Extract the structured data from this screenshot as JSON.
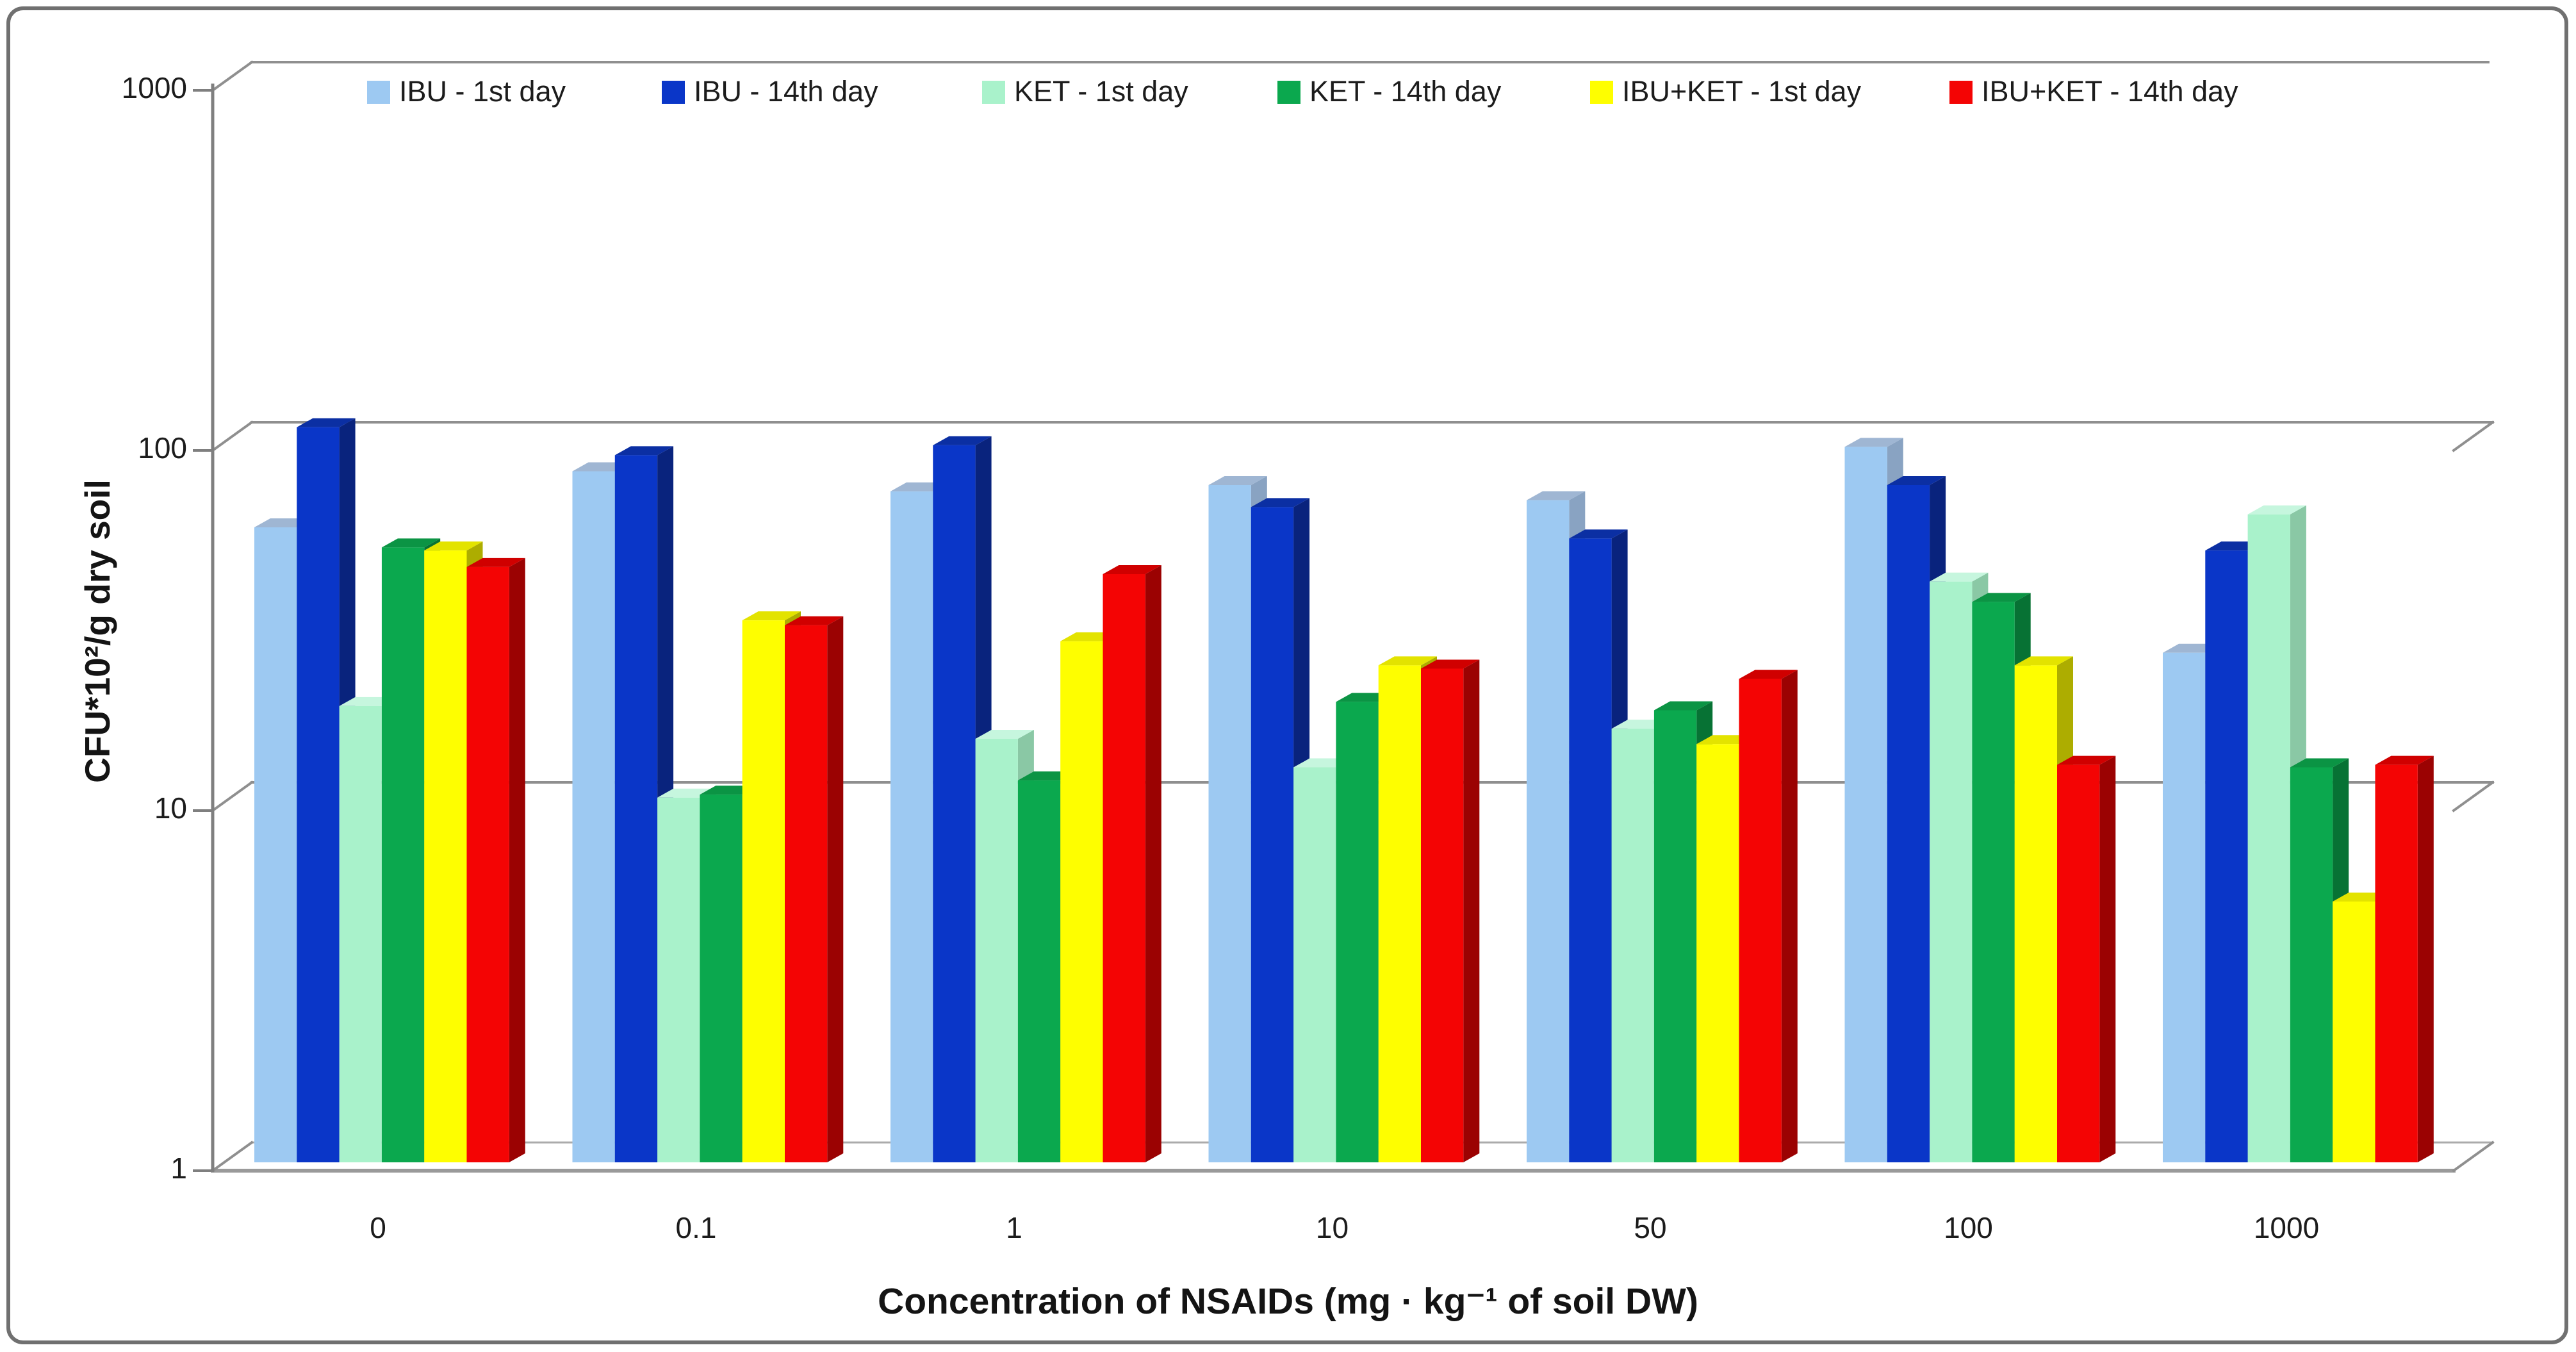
{
  "figure": {
    "background_color": "#ffffff",
    "border_color": "#707070",
    "gridline_color": "#8F8F8F",
    "axis_color": "#7F7F7F",
    "text_color": "#1C1C1C"
  },
  "chart_data": {
    "type": "bar",
    "style": "3d-clustered-column",
    "title": "",
    "xlabel": "Concentration of NSAIDs (mg · kg⁻¹ of soil DW)",
    "ylabel": "CFU*10²/g dry soil",
    "y_scale": "log10",
    "ylim": [
      1,
      1000
    ],
    "y_ticks": [
      "1",
      "10",
      "100",
      "1000"
    ],
    "grid": "horizontal decade gridlines on back wall",
    "legend_position": "top",
    "categories": [
      "0",
      "0.1",
      "1",
      "10",
      "50",
      "100",
      "1000"
    ],
    "series": [
      {
        "name": "IBU - 1st day",
        "color": "#9DC9F2",
        "top_color": "#9FB6D3",
        "side_color": "#89A3C2",
        "values": [
          58,
          83,
          73,
          76,
          69,
          97,
          26
        ]
      },
      {
        "name": "IBU - 14th day",
        "color": "#0A36C8",
        "top_color": "#0B2FA3",
        "side_color": "#09237D",
        "values": [
          110,
          92,
          98,
          66,
          54,
          76,
          50
        ]
      },
      {
        "name": "KET - 1st day",
        "color": "#A9F2CB",
        "top_color": "#C6F6DE",
        "side_color": "#8AC8A5",
        "values": [
          18.5,
          10.3,
          15,
          12.5,
          16,
          41,
          63
        ]
      },
      {
        "name": "KET - 14th day",
        "color": "#0BA84E",
        "top_color": "#0B9444",
        "side_color": "#077234",
        "values": [
          51,
          10.5,
          11.5,
          19,
          18,
          36,
          12.5
        ]
      },
      {
        "name": "IBU+KET - 1st day",
        "color": "#FEFE00",
        "top_color": "#E3E300",
        "side_color": "#ADAD00",
        "values": [
          50,
          32,
          28,
          24,
          14.5,
          24,
          5.3
        ]
      },
      {
        "name": "IBU+KET - 14th day",
        "color": "#F40404",
        "top_color": "#D00000",
        "side_color": "#9B0202",
        "values": [
          45,
          31,
          43,
          23.5,
          22,
          12.7,
          12.7
        ]
      }
    ]
  }
}
